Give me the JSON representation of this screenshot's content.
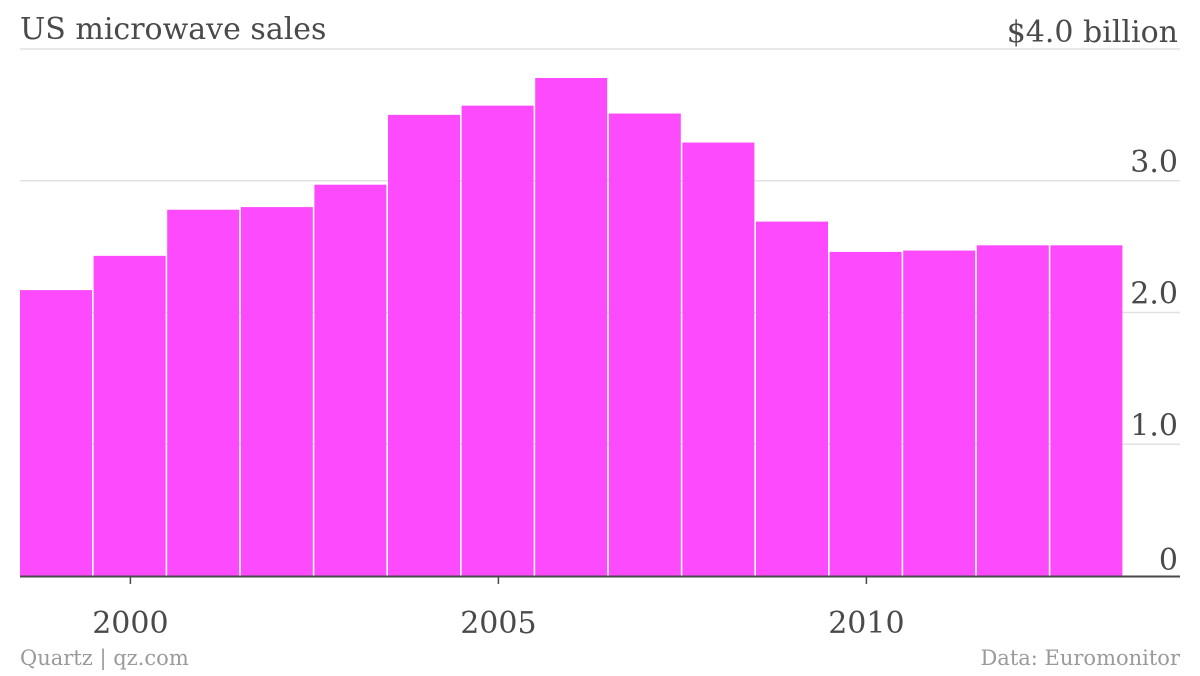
{
  "chart_data": {
    "type": "bar",
    "title": "US microwave sales",
    "x": [
      1999,
      2000,
      2001,
      2002,
      2003,
      2004,
      2005,
      2006,
      2007,
      2008,
      2009,
      2010,
      2011,
      2012,
      2013
    ],
    "values": [
      2.17,
      2.43,
      2.78,
      2.8,
      2.97,
      3.5,
      3.57,
      3.78,
      3.51,
      3.29,
      2.69,
      2.46,
      2.47,
      2.51,
      2.51
    ],
    "ylim": [
      0,
      4.0
    ],
    "y_ticks": [
      {
        "value": 0,
        "label": "0"
      },
      {
        "value": 1.0,
        "label": "1.0"
      },
      {
        "value": 2.0,
        "label": "2.0"
      },
      {
        "value": 3.0,
        "label": "3.0"
      },
      {
        "value": 4.0,
        "label": "$4.0 billion"
      }
    ],
    "x_ticks": [
      {
        "value": 2000,
        "label": "2000"
      },
      {
        "value": 2005,
        "label": "2005"
      },
      {
        "value": 2010,
        "label": "2010"
      }
    ],
    "bar_color": "#fd4afd",
    "grid": true,
    "xlabel": "",
    "ylabel": ""
  },
  "footer": {
    "source_left": "Quartz | qz.com",
    "source_right": "Data: Euromonitor"
  }
}
